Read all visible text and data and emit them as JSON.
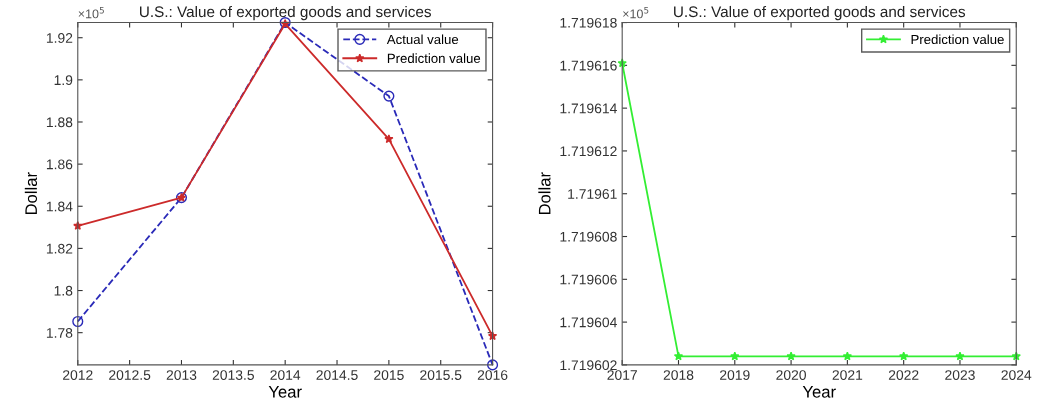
{
  "chart_data": [
    {
      "type": "line",
      "title": "U.S.: Value of exported goods and services",
      "xlabel": "Year",
      "ylabel": "Dollar",
      "annotations": [
        "×10$^{5}$"
      ],
      "x": [
        2012,
        2013,
        2014,
        2015,
        2016
      ],
      "series": [
        {
          "name": "Actual value",
          "color": "#2a2ab8",
          "values": [
            1.7853,
            1.8441,
            1.9272,
            1.8923,
            1.7647
          ],
          "marker": "circle",
          "line_style": "dashed"
        },
        {
          "name": "Prediction value",
          "color": "#cc2a2a",
          "values": [
            1.8307,
            1.8441,
            1.9266,
            1.8719,
            1.7784
          ],
          "marker": "star",
          "line_style": "solid"
        }
      ],
      "xlim": [
        2012,
        2016
      ],
      "xticks": [
        2012,
        2012.5,
        2013,
        2013.5,
        2014,
        2014.5,
        2015,
        2015.5,
        2016
      ],
      "ylim": [
        1.7647,
        1.9272
      ],
      "yticks": [
        1.78,
        {
          "value": 1.8,
          "label": "1.8"
        },
        1.82,
        1.84,
        1.86,
        1.88,
        {
          "value": 1.9,
          "label": "1.9"
        },
        1.92
      ],
      "legend": "top right",
      "grid": false
    },
    {
      "type": "line",
      "title": "U.S.: Value of exported goods and services",
      "xlabel": "Year",
      "ylabel": "Dollar",
      "annotations": [
        "×10$^{5}$"
      ],
      "x": [
        2017,
        2018,
        2019,
        2020,
        2021,
        2022,
        2023,
        2024
      ],
      "series": [
        {
          "name": "Prediction value",
          "color": "#33ee33",
          "values": [
            1.7196161,
            1.7196024,
            1.7196024,
            1.7196024,
            1.7196024,
            1.7196024,
            1.7196024,
            1.7196024
          ],
          "marker": "star",
          "line_style": "solid"
        }
      ],
      "xlim": [
        2017,
        2024
      ],
      "xticks": [
        2017,
        2018,
        2019,
        2020,
        2021,
        2022,
        2023,
        2024
      ],
      "ylim": [
        1.719602,
        1.719618
      ],
      "yticks": [
        1.719602,
        1.719604,
        1.719606,
        1.719608,
        {
          "value": 1.71961,
          "label": "1.71961"
        },
        1.719612,
        1.719614,
        1.719616,
        1.719618
      ],
      "legend": "top right",
      "grid": false
    }
  ]
}
